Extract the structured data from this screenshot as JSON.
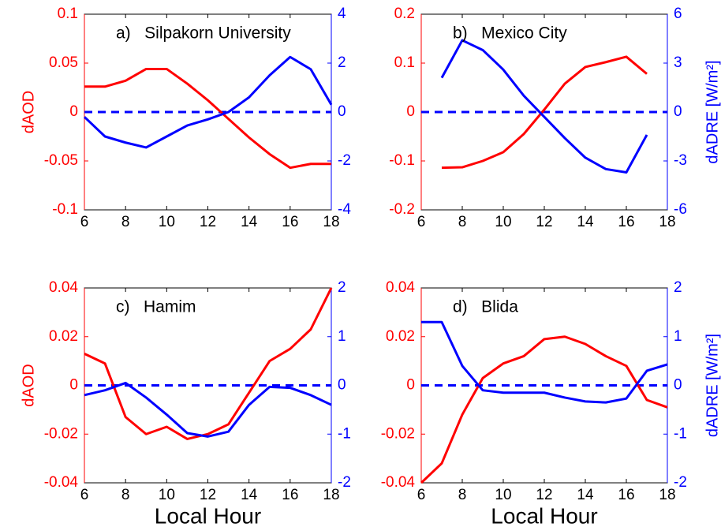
{
  "chart_data": [
    {
      "type": "line",
      "annotation": "a)   Silpakorn University",
      "ylabel": "dAOD",
      "x": [
        6,
        7,
        8,
        9,
        10,
        11,
        12,
        13,
        14,
        15,
        16,
        17,
        18
      ],
      "xlim": [
        6,
        18
      ],
      "xticks": [
        6,
        8,
        10,
        12,
        14,
        16,
        18
      ],
      "ylim": [
        -0.1,
        0.1
      ],
      "yticks": [
        -0.1,
        -0.05,
        0,
        0.05,
        0.1
      ],
      "y2lim": [
        -4,
        4
      ],
      "y2ticks": [
        -4,
        -2,
        0,
        2,
        4
      ],
      "hlines": [
        {
          "value": 0,
          "color": "#0000ff",
          "dash": true
        }
      ],
      "series": [
        {
          "name": "dAOD",
          "color": "#ff0000",
          "values": [
            0.026,
            0.026,
            0.032,
            0.044,
            0.044,
            0.029,
            0.012,
            -0.007,
            -0.026,
            -0.043,
            -0.057,
            -0.053,
            -0.053
          ]
        },
        {
          "name": "dADRE",
          "color": "#0000ff",
          "axis": "y2",
          "values": [
            -0.2,
            -1.0,
            -1.25,
            -1.45,
            -1.0,
            -0.55,
            -0.3,
            0,
            0.6,
            1.5,
            2.25,
            1.75,
            0.3
          ]
        }
      ]
    },
    {
      "type": "line",
      "annotation": "b)   Mexico City",
      "y2label": "dADRE [W/m²]",
      "x": [
        7,
        8,
        9,
        10,
        11,
        12,
        13,
        14,
        15,
        16,
        17
      ],
      "xlim": [
        6,
        18
      ],
      "xticks": [
        6,
        8,
        10,
        12,
        14,
        16,
        18
      ],
      "ylim": [
        -0.2,
        0.2
      ],
      "yticks": [
        -0.2,
        -0.1,
        0,
        0.1,
        0.2
      ],
      "y2lim": [
        -6,
        6
      ],
      "y2ticks": [
        -6,
        -3,
        0,
        3,
        6
      ],
      "hlines": [
        {
          "value": 0,
          "color": "#0000ff",
          "dash": true
        }
      ],
      "series": [
        {
          "name": "dAOD",
          "color": "#ff0000",
          "values": [
            -0.114,
            -0.113,
            -0.1,
            -0.082,
            -0.045,
            0.005,
            0.058,
            0.092,
            0.102,
            0.113,
            0.078
          ]
        },
        {
          "name": "dADRE",
          "color": "#0000ff",
          "axis": "y2",
          "values": [
            2.1,
            4.4,
            3.8,
            2.6,
            1.0,
            -0.3,
            -1.6,
            -2.8,
            -3.5,
            -3.7,
            -1.4
          ]
        }
      ]
    },
    {
      "type": "line",
      "annotation": "c)   Hamim",
      "ylabel": "dAOD",
      "xlabel": "Local Hour",
      "x": [
        6,
        7,
        8,
        9,
        10,
        11,
        12,
        13,
        14,
        15,
        16,
        17,
        18
      ],
      "xlim": [
        6,
        18
      ],
      "xticks": [
        6,
        8,
        10,
        12,
        14,
        16,
        18
      ],
      "ylim": [
        -0.04,
        0.04
      ],
      "yticks": [
        -0.04,
        -0.02,
        0,
        0.02,
        0.04
      ],
      "y2lim": [
        -2,
        2
      ],
      "y2ticks": [
        -2,
        -1,
        0,
        1,
        2
      ],
      "hlines": [
        {
          "value": 0,
          "color": "#0000ff",
          "dash": true
        }
      ],
      "series": [
        {
          "name": "dAOD",
          "color": "#ff0000",
          "values": [
            0.013,
            0.009,
            -0.013,
            -0.02,
            -0.017,
            -0.022,
            -0.02,
            -0.016,
            -0.003,
            0.01,
            0.015,
            0.023,
            0.04
          ]
        },
        {
          "name": "dADRE",
          "color": "#0000ff",
          "axis": "y2",
          "values": [
            -0.2,
            -0.1,
            0.05,
            -0.25,
            -0.6,
            -0.98,
            -1.05,
            -0.95,
            -0.4,
            -0.03,
            -0.05,
            -0.2,
            -0.4
          ]
        }
      ]
    },
    {
      "type": "line",
      "annotation": "d)   Blida",
      "y2label": "dADRE [W/m²]",
      "xlabel": "Local Hour",
      "x": [
        6,
        7,
        8,
        9,
        10,
        11,
        12,
        13,
        14,
        15,
        16,
        17,
        18
      ],
      "xlim": [
        6,
        18
      ],
      "xticks": [
        6,
        8,
        10,
        12,
        14,
        16,
        18
      ],
      "ylim": [
        -0.04,
        0.04
      ],
      "yticks": [
        -0.04,
        -0.02,
        0,
        0.02,
        0.04
      ],
      "y2lim": [
        -2,
        2
      ],
      "y2ticks": [
        -2,
        -1,
        0,
        1,
        2
      ],
      "hlines": [
        {
          "value": 0,
          "color": "#0000ff",
          "dash": true
        }
      ],
      "series": [
        {
          "name": "dAOD",
          "color": "#ff0000",
          "values": [
            -0.04,
            -0.032,
            -0.012,
            0.003,
            0.009,
            0.012,
            0.019,
            0.02,
            0.017,
            0.012,
            0.008,
            -0.006,
            -0.009
          ]
        },
        {
          "name": "dADRE",
          "color": "#0000ff",
          "axis": "y2",
          "values": [
            1.3,
            1.3,
            0.4,
            -0.1,
            -0.15,
            -0.15,
            -0.15,
            -0.25,
            -0.33,
            -0.35,
            -0.27,
            0.3,
            0.43
          ]
        }
      ]
    }
  ]
}
